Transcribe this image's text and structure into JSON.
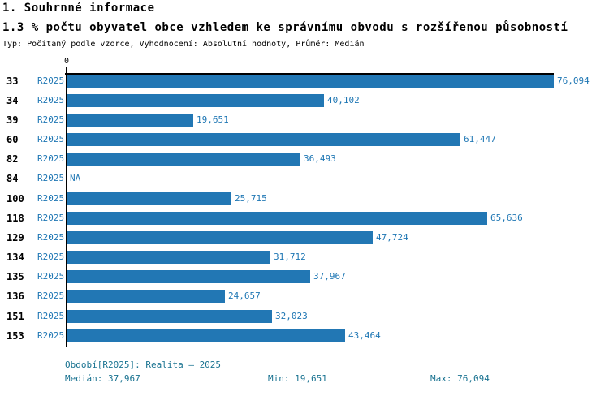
{
  "header": {
    "section_title": "1. Souhrnné informace",
    "chart_title": "1.3 % počtu obyvatel obce vzhledem ke správnímu obvodu s rozšířenou působností",
    "settings_line": "Typ: Počítaný podle vzorce, Vyhodnocení: Absolutní hodnoty, Průměr: Medián"
  },
  "chart_data": {
    "type": "bar",
    "orientation": "horizontal",
    "categories": [
      "33",
      "34",
      "39",
      "60",
      "82",
      "84",
      "100",
      "118",
      "129",
      "134",
      "135",
      "136",
      "151",
      "153"
    ],
    "series": [
      {
        "name": "R2025",
        "values": [
          76094,
          40102,
          19651,
          61447,
          36493,
          null,
          25715,
          65636,
          47724,
          31712,
          37967,
          24657,
          32023,
          43464
        ],
        "value_labels": [
          "76,094",
          "40,102",
          "19,651",
          "61,447",
          "36,493",
          "NA",
          "25,715",
          "65,636",
          "47,724",
          "31,712",
          "37,967",
          "24,657",
          "32,023",
          "43,464"
        ]
      }
    ],
    "na_label": "NA",
    "xlim": [
      0,
      76094
    ],
    "x_ticks": [
      {
        "value": 0,
        "label": "0"
      }
    ],
    "median_line_value": 37967,
    "bar_color": "#2277b4",
    "label_color": "#1f77b4",
    "grid": "median-line-only",
    "legend_position": "none"
  },
  "footer": {
    "period": "Období[R2025]: Realita – 2025",
    "median": "Medián: 37,967",
    "min": "Min: 19,651",
    "max": "Max: 76,094"
  }
}
